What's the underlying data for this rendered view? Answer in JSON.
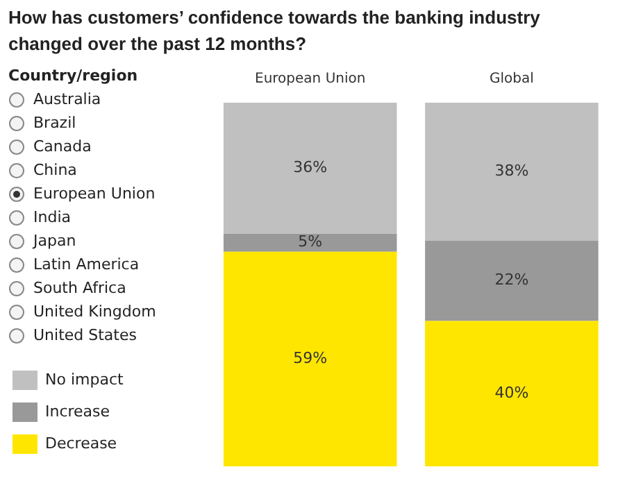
{
  "chart_data": {
    "type": "bar",
    "title": "How has customers’ confidence towards the banking industry changed over the past 12 months?",
    "categories": [
      "European Union",
      "Global"
    ],
    "stacked": true,
    "legend": "bottom left",
    "series": [
      {
        "name": "Decrease",
        "color": "#ffe600",
        "values": [
          59,
          40
        ],
        "value_labels": [
          "59%",
          "40%"
        ]
      },
      {
        "name": "Increase",
        "color": "#999999",
        "values": [
          5,
          22
        ],
        "value_labels": [
          "5%",
          "22%"
        ]
      },
      {
        "name": "No impact",
        "color": "#c0c0c0",
        "values": [
          36,
          38
        ],
        "value_labels": [
          "36%",
          "38%"
        ]
      }
    ],
    "annotations": [
      "Country/region",
      "Australia",
      "Brazil",
      "Canada",
      "China",
      "European Union",
      "India",
      "Japan",
      "Latin America",
      "South Africa",
      "United Kingdom",
      "United States"
    ]
  }
}
